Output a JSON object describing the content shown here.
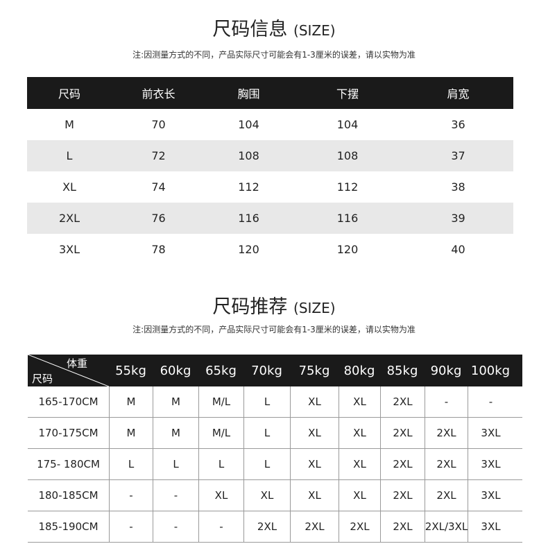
{
  "size_info": {
    "title": "尺码信息",
    "title_en": "(SIZE)",
    "note": "注:因测量方式的不同，产品实际尺寸可能会有1-3厘米的误差，请以实物为准",
    "headers": [
      "尺码",
      "前衣长",
      "胸围",
      "下摆",
      "肩宽"
    ],
    "rows": [
      [
        "M",
        "70",
        "104",
        "104",
        "36"
      ],
      [
        "L",
        "72",
        "108",
        "108",
        "37"
      ],
      [
        "XL",
        "74",
        "112",
        "112",
        "38"
      ],
      [
        "2XL",
        "76",
        "116",
        "116",
        "39"
      ],
      [
        "3XL",
        "78",
        "120",
        "120",
        "40"
      ]
    ]
  },
  "size_rec": {
    "title": "尺码推荐",
    "title_en": "(SIZE)",
    "note": "注:因测量方式的不同，产品实际尺寸可能会有1-3厘米的误差，请以实物为准",
    "corner_top": "体重",
    "corner_bottom": "尺码",
    "weights": [
      "55kg",
      "60kg",
      "65kg",
      "70kg",
      "75kg",
      "80kg",
      "85kg",
      "90kg",
      "100kg"
    ],
    "rows": [
      {
        "height": "165-170CM",
        "sizes": [
          "M",
          "M",
          "M/L",
          "L",
          "XL",
          "XL",
          "2XL",
          "-",
          "-"
        ]
      },
      {
        "height": "170-175CM",
        "sizes": [
          "M",
          "M",
          "M/L",
          "L",
          "XL",
          "XL",
          "2XL",
          "2XL",
          "3XL"
        ]
      },
      {
        "height": "175- 180CM",
        "sizes": [
          "L",
          "L",
          "L",
          "L",
          "XL",
          "XL",
          "2XL",
          "2XL",
          "3XL"
        ]
      },
      {
        "height": "180-185CM",
        "sizes": [
          "-",
          "-",
          "XL",
          "XL",
          "XL",
          "XL",
          "2XL",
          "2XL",
          "3XL"
        ]
      },
      {
        "height": "185-190CM",
        "sizes": [
          "-",
          "-",
          "-",
          "2XL",
          "2XL",
          "2XL",
          "2XL",
          "2XL/3XL",
          "3XL"
        ]
      }
    ]
  }
}
